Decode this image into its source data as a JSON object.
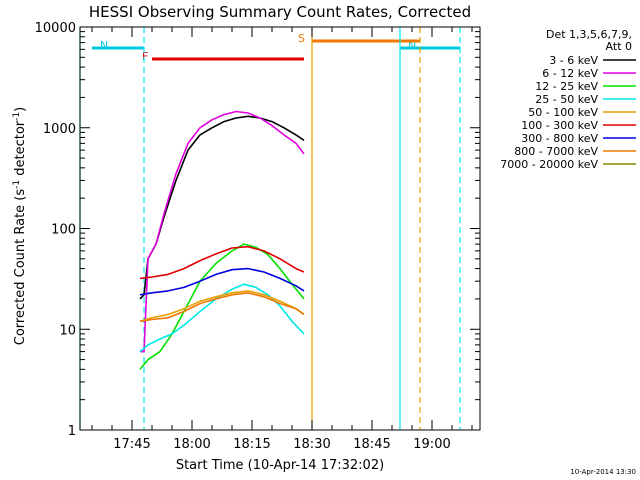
{
  "chart_data": {
    "type": "line",
    "title": "HESSI Observing Summary Count Rates, Corrected",
    "xlabel": "Start Time (10-Apr-14 17:32:02)",
    "ylabel": "Corrected Count Rate (s-1 detector-1)",
    "ylabel_parts": {
      "main": "Corrected Count Rate (s",
      "exp1": "-1",
      "mid": " detector",
      "exp2": "-1",
      "end": ")"
    },
    "xlim": [
      "17:32",
      "19:12"
    ],
    "ylim": [
      1,
      10000
    ],
    "y_scale": "log",
    "x_ticks": [
      "17:45",
      "18:00",
      "18:15",
      "18:30",
      "18:45",
      "19:00"
    ],
    "y_ticks": [
      "1",
      "10",
      "100",
      "1000",
      "10000"
    ],
    "date_stamp": "10-Apr-2014 13:30",
    "legend": {
      "header": [
        "Det 1,3,5,6,7,9,",
        "Att 0"
      ],
      "entries": [
        {
          "label": "3 - 6 keV",
          "color": "#000000"
        },
        {
          "label": "6 - 12 keV",
          "color": "#e000e0"
        },
        {
          "label": "12 - 25 keV",
          "color": "#00e000"
        },
        {
          "label": "25 - 50 keV",
          "color": "#00e8e8"
        },
        {
          "label": "50 - 100 keV",
          "color": "#e8a000"
        },
        {
          "label": "100 - 300 keV",
          "color": "#e00000"
        },
        {
          "label": "300 - 800 keV",
          "color": "#0000e0"
        },
        {
          "label": "800 - 7000 keV",
          "color": "#f07800"
        },
        {
          "label": "7000 - 20000 keV",
          "color": "#888800"
        }
      ]
    },
    "flag_bars": [
      {
        "letter": "F",
        "color": "#e00000",
        "x": [
          "17:50",
          "18:28"
        ]
      },
      {
        "letter": "N",
        "color": "#00c8e0",
        "x": [
          "17:35",
          "17:48"
        ]
      },
      {
        "letter": "N",
        "color": "#00c8e0",
        "x": [
          "18:52",
          "19:07"
        ]
      },
      {
        "letter": "S",
        "color": "#f07800",
        "x": [
          "18:30",
          "18:57"
        ]
      }
    ],
    "vertical_lines": [
      {
        "x": "17:32",
        "color": "#00e8e8",
        "style": "solid"
      },
      {
        "x": "17:48",
        "color": "#00e8e8",
        "style": "dashed"
      },
      {
        "x": "18:30",
        "color": "#e8a000",
        "style": "solid"
      },
      {
        "x": "18:52",
        "color": "#00e8e8",
        "style": "solid"
      },
      {
        "x": "18:57",
        "color": "#e8a000",
        "style": "dashed"
      },
      {
        "x": "19:07",
        "color": "#00e8e8",
        "style": "dashed"
      }
    ],
    "series": [
      {
        "name": "3 - 6 keV",
        "color": "#000000",
        "x": [
          "17:47",
          "17:48",
          "17:49",
          "17:51",
          "17:53",
          "17:56",
          "17:59",
          "18:02",
          "18:05",
          "18:08",
          "18:11",
          "18:14",
          "18:17",
          "18:20",
          "18:23",
          "18:26",
          "18:28"
        ],
        "y": [
          20,
          22,
          50,
          70,
          130,
          300,
          600,
          850,
          1000,
          1150,
          1250,
          1300,
          1250,
          1150,
          1000,
          850,
          750
        ]
      },
      {
        "name": "6 - 12 keV",
        "color": "#e000e0",
        "x": [
          "17:47",
          "17:48",
          "17:49",
          "17:51",
          "17:53",
          "17:56",
          "17:59",
          "18:02",
          "18:05",
          "18:08",
          "18:11",
          "18:14",
          "18:17",
          "18:20",
          "18:23",
          "18:26",
          "18:28"
        ],
        "y": [
          6,
          6,
          50,
          70,
          140,
          350,
          700,
          1000,
          1200,
          1350,
          1450,
          1400,
          1250,
          1050,
          850,
          700,
          550
        ]
      },
      {
        "name": "12 - 25 keV",
        "color": "#00e000",
        "x": [
          "17:47",
          "17:49",
          "17:52",
          "17:55",
          "17:58",
          "18:02",
          "18:06",
          "18:10",
          "18:13",
          "18:16",
          "18:19",
          "18:22",
          "18:25",
          "18:28"
        ],
        "y": [
          4,
          5,
          6,
          9,
          15,
          30,
          45,
          60,
          70,
          65,
          55,
          40,
          28,
          20
        ]
      },
      {
        "name": "25 - 50 keV",
        "color": "#00e8e8",
        "x": [
          "17:47",
          "17:49",
          "17:52",
          "17:55",
          "17:58",
          "18:02",
          "18:06",
          "18:10",
          "18:13",
          "18:16",
          "18:19",
          "18:22",
          "18:25",
          "18:28"
        ],
        "y": [
          6,
          7,
          8,
          9,
          11,
          15,
          20,
          25,
          28,
          26,
          22,
          17,
          12,
          9
        ]
      },
      {
        "name": "50 - 100 keV",
        "color": "#e8a000",
        "x": [
          "17:47",
          "17:50",
          "17:54",
          "17:58",
          "18:02",
          "18:06",
          "18:10",
          "18:14",
          "18:18",
          "18:22",
          "18:26",
          "18:28"
        ],
        "y": [
          12,
          13,
          14,
          16,
          19,
          21,
          23,
          24,
          22,
          19,
          16,
          14
        ]
      },
      {
        "name": "100 - 300 keV",
        "color": "#e00000",
        "x": [
          "17:47",
          "17:50",
          "17:54",
          "17:58",
          "18:02",
          "18:06",
          "18:10",
          "18:14",
          "18:18",
          "18:22",
          "18:26",
          "18:28"
        ],
        "y": [
          32,
          33,
          35,
          40,
          48,
          56,
          64,
          66,
          60,
          50,
          40,
          37
        ]
      },
      {
        "name": "300 - 800 keV",
        "color": "#0000e0",
        "x": [
          "17:47",
          "17:50",
          "17:54",
          "17:58",
          "18:02",
          "18:06",
          "18:10",
          "18:14",
          "18:18",
          "18:22",
          "18:26",
          "18:28"
        ],
        "y": [
          22,
          23,
          24,
          26,
          30,
          35,
          39,
          40,
          37,
          32,
          27,
          24
        ]
      },
      {
        "name": "800 - 7000 keV",
        "color": "#f07800",
        "x": [
          "17:47",
          "17:50",
          "17:54",
          "17:58",
          "18:02",
          "18:06",
          "18:10",
          "18:14",
          "18:18",
          "18:22",
          "18:26",
          "18:28"
        ],
        "y": [
          12,
          12.5,
          13,
          15,
          18,
          20,
          22,
          23,
          21,
          18,
          16,
          14
        ]
      }
    ]
  }
}
